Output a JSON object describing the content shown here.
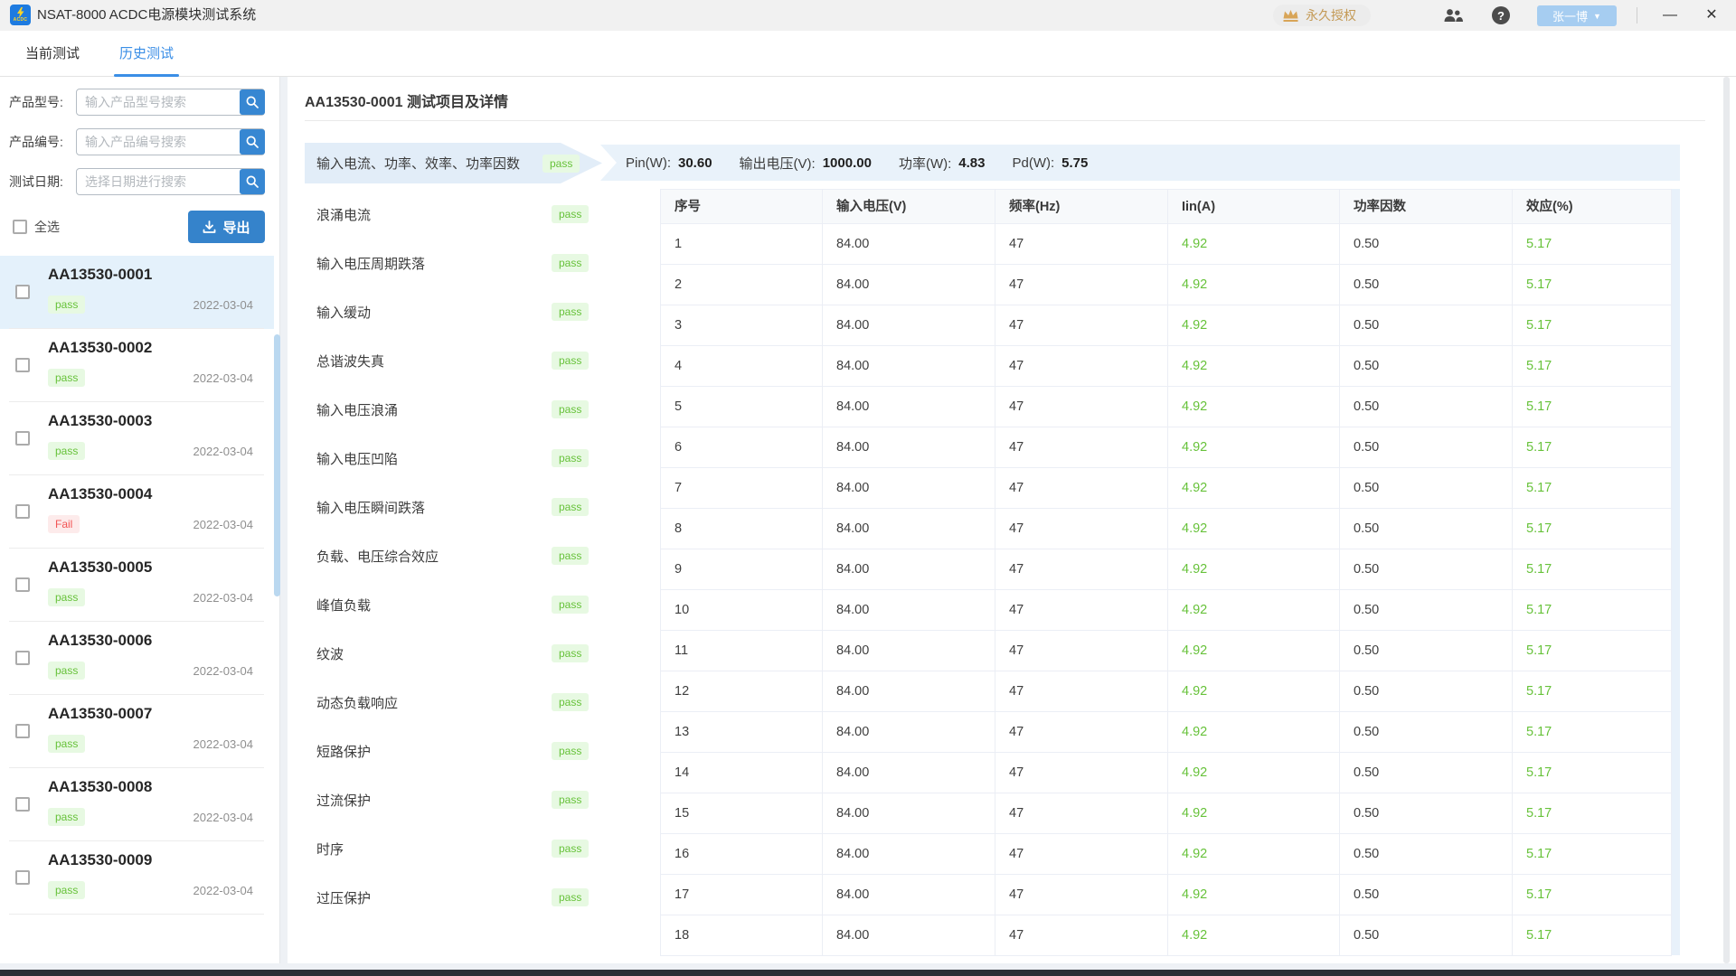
{
  "window": {
    "title": "NSAT-8000 ACDC电源模块测试系统",
    "logo_text": "ACDC",
    "license_label": "永久授权",
    "user_name": "张一博"
  },
  "icons": {
    "help": "?",
    "dropdown": "▼",
    "minimize": "—",
    "close": "✕"
  },
  "tabs": [
    {
      "label": "当前测试",
      "active": false
    },
    {
      "label": "历史测试",
      "active": true
    }
  ],
  "sidebar": {
    "filters": [
      {
        "label": "产品型号:",
        "placeholder": "输入产品型号搜索"
      },
      {
        "label": "产品编号:",
        "placeholder": "输入产品编号搜索"
      },
      {
        "label": "测试日期:",
        "placeholder": "选择日期进行搜索"
      }
    ],
    "select_all_label": "全选",
    "export_label": "导出",
    "items": [
      {
        "id": "AA13530-0001",
        "status": "pass",
        "date": "2022-03-04",
        "selected": true
      },
      {
        "id": "AA13530-0002",
        "status": "pass",
        "date": "2022-03-04",
        "selected": false
      },
      {
        "id": "AA13530-0003",
        "status": "pass",
        "date": "2022-03-04",
        "selected": false
      },
      {
        "id": "AA13530-0004",
        "status": "Fail",
        "date": "2022-03-04",
        "selected": false
      },
      {
        "id": "AA13530-0005",
        "status": "pass",
        "date": "2022-03-04",
        "selected": false
      },
      {
        "id": "AA13530-0006",
        "status": "pass",
        "date": "2022-03-04",
        "selected": false
      },
      {
        "id": "AA13530-0007",
        "status": "pass",
        "date": "2022-03-04",
        "selected": false
      },
      {
        "id": "AA13530-0008",
        "status": "pass",
        "date": "2022-03-04",
        "selected": false
      },
      {
        "id": "AA13530-0009",
        "status": "pass",
        "date": "2022-03-04",
        "selected": false
      }
    ]
  },
  "main": {
    "title": "AA13530-0001 测试项目及详情",
    "test_items": [
      {
        "label": "输入电流、功率、效率、功率因数",
        "status": "pass",
        "selected": true
      },
      {
        "label": "浪涌电流",
        "status": "pass",
        "selected": false
      },
      {
        "label": "输入电压周期跌落",
        "status": "pass",
        "selected": false
      },
      {
        "label": "输入缓动",
        "status": "pass",
        "selected": false
      },
      {
        "label": "总谐波失真",
        "status": "pass",
        "selected": false
      },
      {
        "label": "输入电压浪涌",
        "status": "pass",
        "selected": false
      },
      {
        "label": "输入电压凹陷",
        "status": "pass",
        "selected": false
      },
      {
        "label": "输入电压瞬间跌落",
        "status": "pass",
        "selected": false
      },
      {
        "label": "负载、电压综合效应",
        "status": "pass",
        "selected": false
      },
      {
        "label": "峰值负载",
        "status": "pass",
        "selected": false
      },
      {
        "label": "纹波",
        "status": "pass",
        "selected": false
      },
      {
        "label": "动态负载响应",
        "status": "pass",
        "selected": false
      },
      {
        "label": "短路保护",
        "status": "pass",
        "selected": false
      },
      {
        "label": "过流保护",
        "status": "pass",
        "selected": false
      },
      {
        "label": "时序",
        "status": "pass",
        "selected": false
      },
      {
        "label": "过压保护",
        "status": "pass",
        "selected": false
      }
    ],
    "summary": [
      {
        "label": "Pin(W):",
        "value": "30.60"
      },
      {
        "label": "输出电压(V):",
        "value": "1000.00"
      },
      {
        "label": "功率(W):",
        "value": "4.83"
      },
      {
        "label": "Pd(W):",
        "value": "5.75"
      }
    ],
    "table": {
      "columns": [
        "序号",
        "输入电压(V)",
        "频率(Hz)",
        "Iin(A)",
        "功率因数",
        "效应(%)"
      ],
      "green_columns": [
        3,
        5
      ],
      "rows": [
        [
          "1",
          "84.00",
          "47",
          "4.92",
          "0.50",
          "5.17"
        ],
        [
          "2",
          "84.00",
          "47",
          "4.92",
          "0.50",
          "5.17"
        ],
        [
          "3",
          "84.00",
          "47",
          "4.92",
          "0.50",
          "5.17"
        ],
        [
          "4",
          "84.00",
          "47",
          "4.92",
          "0.50",
          "5.17"
        ],
        [
          "5",
          "84.00",
          "47",
          "4.92",
          "0.50",
          "5.17"
        ],
        [
          "6",
          "84.00",
          "47",
          "4.92",
          "0.50",
          "5.17"
        ],
        [
          "7",
          "84.00",
          "47",
          "4.92",
          "0.50",
          "5.17"
        ],
        [
          "8",
          "84.00",
          "47",
          "4.92",
          "0.50",
          "5.17"
        ],
        [
          "9",
          "84.00",
          "47",
          "4.92",
          "0.50",
          "5.17"
        ],
        [
          "10",
          "84.00",
          "47",
          "4.92",
          "0.50",
          "5.17"
        ],
        [
          "11",
          "84.00",
          "47",
          "4.92",
          "0.50",
          "5.17"
        ],
        [
          "12",
          "84.00",
          "47",
          "4.92",
          "0.50",
          "5.17"
        ],
        [
          "13",
          "84.00",
          "47",
          "4.92",
          "0.50",
          "5.17"
        ],
        [
          "14",
          "84.00",
          "47",
          "4.92",
          "0.50",
          "5.17"
        ],
        [
          "15",
          "84.00",
          "47",
          "4.92",
          "0.50",
          "5.17"
        ],
        [
          "16",
          "84.00",
          "47",
          "4.92",
          "0.50",
          "5.17"
        ],
        [
          "17",
          "84.00",
          "47",
          "4.92",
          "0.50",
          "5.17"
        ],
        [
          "18",
          "84.00",
          "47",
          "4.92",
          "0.50",
          "5.17"
        ]
      ]
    }
  },
  "colors": {
    "accent_blue": "#3a8ee6",
    "button_blue": "#3583cb",
    "success_green": "#67c23a",
    "fail_red": "#f25555",
    "license_gold": "#c49a56",
    "selected_row_bg": "#e4f1fb",
    "summary_bg": "#e9f2fa"
  }
}
